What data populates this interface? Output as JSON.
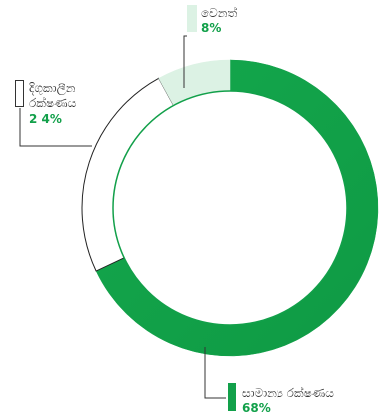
{
  "chart_data": {
    "type": "pie",
    "variant": "donut",
    "title": "",
    "categories": [
      "සාමාන්‍ය රක්ෂණය",
      "දිගුකාලීන රක්ෂණය",
      "වෙනත්"
    ],
    "values": [
      68,
      24,
      8
    ],
    "series": [
      {
        "values": [
          68,
          24,
          8
        ],
        "labels": [
          "68%",
          "2 4%",
          "8%"
        ]
      }
    ],
    "colors": [
      "#12a04a",
      "#ffffff",
      "#dcf2e4"
    ],
    "outline_color": "#222222",
    "start_angle_deg": 0,
    "legend": "callouts"
  },
  "labels": {
    "other": {
      "name": "වෙනත්",
      "pct": "8%"
    },
    "longterm": {
      "name_line1": "දිගුකාලීන",
      "name_line2": "රක්ෂණය",
      "pct": "2 4%"
    },
    "general": {
      "name": "සාමාන්‍ය රක්ෂණය",
      "pct": "68%"
    }
  }
}
